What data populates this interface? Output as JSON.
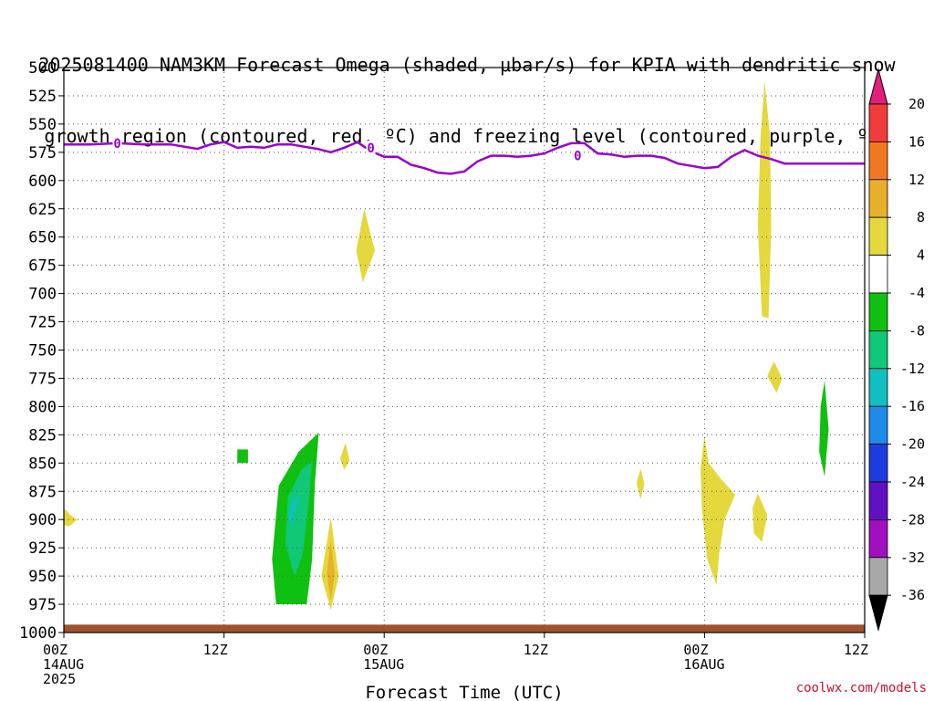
{
  "title_lines": [
    "2025081400 NAM3KM Forecast Omega (shaded, μbar/s) for KPIA with dendritic snow",
    "growth region (contoured, red, ºC) and freezing level (contoured, purple, ºC)"
  ],
  "credit": "coolwx.com/models",
  "chart_data": {
    "type": "area",
    "title": "2025081400 NAM3KM Forecast Omega (shaded, μbar/s) for KPIA with dendritic snow growth region (contoured, red, ºC) and freezing level (contoured, purple, ºC)",
    "xlabel": "Forecast Time (UTC)",
    "ylabel": "",
    "x_unit": "forecast hours",
    "xlim": [
      0,
      60
    ],
    "x_ticks": [
      {
        "x": 0,
        "lines": [
          "00Z",
          "14AUG",
          "2025"
        ]
      },
      {
        "x": 12,
        "lines": [
          "12Z"
        ]
      },
      {
        "x": 24,
        "lines": [
          "00Z",
          "15AUG"
        ]
      },
      {
        "x": 36,
        "lines": [
          "12Z"
        ]
      },
      {
        "x": 48,
        "lines": [
          "00Z",
          "16AUG"
        ]
      },
      {
        "x": 60,
        "lines": [
          "12Z"
        ]
      }
    ],
    "y_unit": "hPa",
    "ylim": [
      1000,
      500
    ],
    "y_ticks": [
      500,
      525,
      550,
      575,
      600,
      625,
      650,
      675,
      700,
      725,
      750,
      775,
      800,
      825,
      850,
      875,
      900,
      925,
      950,
      975,
      1000
    ],
    "grid": true,
    "colorbar": {
      "labels": [
        "20",
        "16",
        "12",
        "8",
        "4",
        "-4",
        "-8",
        "-12",
        "-16",
        "-20",
        "-24",
        "-28",
        "-32",
        "-36"
      ],
      "top_color": "#e0207c",
      "bottom_color": "#000000",
      "colors": [
        "#f03c3c",
        "#f07820",
        "#e8b02a",
        "#e4d83c",
        "#ffffff",
        "#10c010",
        "#10c878",
        "#10c0c0",
        "#1c8ce8",
        "#1c3ce0",
        "#6010c0",
        "#a010c0",
        "#a8a8a8"
      ]
    },
    "freezing_level": {
      "name": "0",
      "color": "#9900cc",
      "x": [
        0,
        2,
        4,
        6,
        8,
        10,
        11,
        12,
        13,
        14,
        15,
        16,
        17,
        18,
        19,
        20,
        21,
        22,
        23,
        24,
        25,
        26,
        27,
        28,
        29,
        30,
        31,
        32,
        33,
        34,
        35,
        36,
        37,
        38,
        39,
        40,
        41,
        42,
        43,
        44,
        45,
        46,
        47,
        48,
        49,
        50,
        51,
        52,
        53,
        54,
        55,
        56,
        57,
        58,
        59,
        60
      ],
      "y": [
        568,
        568,
        567,
        568,
        568,
        572,
        568,
        566,
        571,
        570,
        571,
        568,
        568,
        570,
        572,
        575,
        571,
        566,
        574,
        579,
        579,
        586,
        589,
        593,
        594,
        592,
        583,
        578,
        578,
        579,
        578,
        576,
        571,
        567,
        567,
        576,
        577,
        579,
        578,
        578,
        580,
        585,
        587,
        589,
        588,
        579,
        573,
        578,
        581,
        585,
        585,
        585,
        585,
        585,
        585,
        585
      ],
      "contour_labels": [
        {
          "x": 4,
          "y": 567
        },
        {
          "x": 23,
          "y": 571
        },
        {
          "x": 38.5,
          "y": 578
        }
      ]
    },
    "omega_regions": [
      {
        "level": "4 to 8",
        "color": "#e4d83c",
        "points": [
          [
            22.5,
            625
          ],
          [
            23.3,
            662
          ],
          [
            22.4,
            690
          ],
          [
            21.9,
            662
          ]
        ]
      },
      {
        "level": "4 to 8",
        "color": "#e4d83c",
        "points": [
          [
            52.5,
            512
          ],
          [
            52.9,
            560
          ],
          [
            53.0,
            640
          ],
          [
            52.8,
            722
          ],
          [
            52.3,
            720
          ],
          [
            52.0,
            640
          ],
          [
            52.2,
            560
          ]
        ]
      },
      {
        "level": "4 to 8",
        "color": "#e4d83c",
        "points": [
          [
            53.2,
            760
          ],
          [
            53.8,
            775
          ],
          [
            53.4,
            788
          ],
          [
            52.7,
            773
          ]
        ]
      },
      {
        "level": "4 to 8",
        "color": "#e4d83c",
        "points": [
          [
            0,
            890
          ],
          [
            0.5,
            896
          ],
          [
            1,
            900
          ],
          [
            0.4,
            906
          ],
          [
            0,
            905
          ]
        ]
      },
      {
        "level": "4 to 8",
        "color": "#e4d83c",
        "points": [
          [
            21.1,
            832
          ],
          [
            21.4,
            848
          ],
          [
            21.0,
            856
          ],
          [
            20.7,
            846
          ]
        ]
      },
      {
        "level": "4 to 8",
        "color": "#e4d83c",
        "points": [
          [
            20.0,
            898
          ],
          [
            20.6,
            950
          ],
          [
            20.0,
            980
          ],
          [
            19.3,
            950
          ]
        ]
      },
      {
        "level": "4 to 8",
        "color": "#e4d83c",
        "points": [
          [
            43.2,
            855
          ],
          [
            43.5,
            868
          ],
          [
            43.2,
            882
          ],
          [
            42.9,
            868
          ]
        ]
      },
      {
        "level": "4 to 8",
        "color": "#e4d83c",
        "points": [
          [
            48.0,
            826
          ],
          [
            48.3,
            850
          ],
          [
            49.3,
            865
          ],
          [
            50.3,
            878
          ],
          [
            49.5,
            900
          ],
          [
            49.1,
            930
          ],
          [
            48.9,
            958
          ],
          [
            48.2,
            935
          ],
          [
            47.8,
            890
          ],
          [
            47.7,
            855
          ]
        ]
      },
      {
        "level": "4 to 8",
        "color": "#e4d83c",
        "points": [
          [
            52.0,
            877
          ],
          [
            52.7,
            896
          ],
          [
            52.3,
            920
          ],
          [
            51.7,
            912
          ],
          [
            51.6,
            890
          ]
        ]
      },
      {
        "level": "8 to 12",
        "color": "#e8b02a",
        "points": [
          [
            20.0,
            918
          ],
          [
            20.3,
            948
          ],
          [
            20.0,
            972
          ],
          [
            19.7,
            948
          ]
        ]
      },
      {
        "level": "-8 to -4",
        "color": "#10c010",
        "points": [
          [
            13.0,
            838
          ],
          [
            13.8,
            838
          ],
          [
            13.8,
            850
          ],
          [
            13.0,
            850
          ]
        ]
      },
      {
        "level": "-8 to -4",
        "color": "#10c010",
        "points": [
          [
            19.1,
            823
          ],
          [
            18.8,
            870
          ],
          [
            18.6,
            935
          ],
          [
            18.2,
            975
          ],
          [
            15.9,
            975
          ],
          [
            15.6,
            935
          ],
          [
            16.1,
            870
          ],
          [
            17.6,
            840
          ]
        ]
      },
      {
        "level": "-8 to -4",
        "color": "#10c010",
        "points": [
          [
            57.0,
            777
          ],
          [
            57.3,
            820
          ],
          [
            57.0,
            862
          ],
          [
            56.6,
            840
          ],
          [
            56.7,
            800
          ]
        ]
      },
      {
        "level": "-12 to -8",
        "color": "#10c878",
        "points": [
          [
            18.6,
            848
          ],
          [
            18.3,
            890
          ],
          [
            17.9,
            930
          ],
          [
            17.3,
            950
          ],
          [
            16.6,
            922
          ],
          [
            16.8,
            880
          ],
          [
            17.8,
            856
          ]
        ]
      },
      {
        "level": "-12 to -8",
        "color": "#10c0c0",
        "points": [
          [
            17.6,
            878
          ],
          [
            17.1,
            905
          ],
          [
            16.8,
            898
          ],
          [
            17.2,
            882
          ]
        ]
      }
    ],
    "surface_band": {
      "color": "#a0522d",
      "from_level": 993,
      "to_level": 1000
    }
  }
}
